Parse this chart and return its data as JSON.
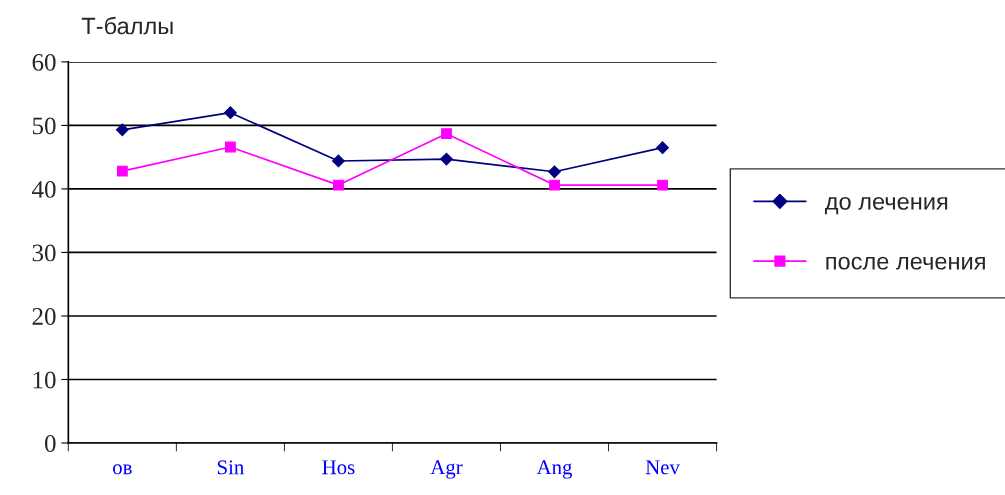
{
  "chart_data": {
    "type": "line",
    "ylabel": "Т-баллы",
    "categories": [
      "ов",
      "Sin",
      "Hos",
      "Agr",
      "Ang",
      "Nev"
    ],
    "series": [
      {
        "name": "до лечения",
        "color": "#000080",
        "marker": "diamond",
        "values": [
          49.3,
          52.0,
          44.4,
          44.7,
          42.7,
          46.5
        ]
      },
      {
        "name": "после лечения",
        "color": "#ff00ff",
        "marker": "square",
        "values": [
          42.8,
          46.6,
          40.6,
          48.7,
          40.6,
          40.6
        ]
      }
    ],
    "ylim": [
      0,
      60
    ],
    "yticks": [
      0,
      10,
      20,
      30,
      40,
      50,
      60
    ],
    "grid": "y",
    "legend": "right"
  }
}
